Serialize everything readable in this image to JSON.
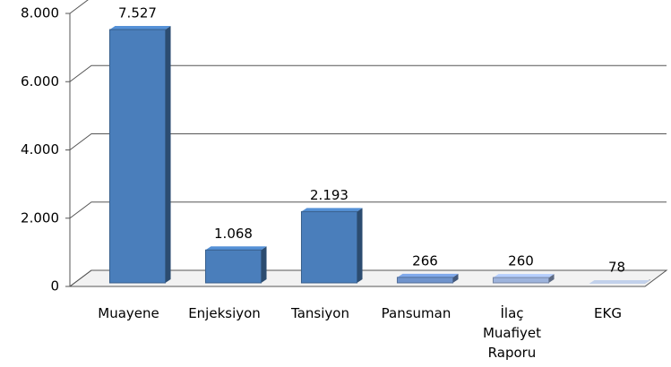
{
  "chart_data": {
    "type": "bar3d",
    "categories": [
      "Muayene",
      "Enjeksiyon",
      "Tansiyon",
      "Pansuman",
      "İlaç Muafiyet Raporu",
      "EKG"
    ],
    "values": [
      7527,
      1068,
      2193,
      266,
      260,
      78
    ],
    "value_labels": [
      "7.527",
      "1.068",
      "2.193",
      "266",
      "260",
      "78"
    ],
    "colors": [
      "#4a7ebb",
      "#4a7ebb",
      "#4a7ebb",
      "#6f93cc",
      "#9db3dc",
      "#a9b6cc"
    ],
    "ylim": [
      0,
      8000
    ],
    "yticks": [
      0,
      {
        "value": 2000,
        "label": "2.000"
      },
      {
        "value": 4000,
        "label": "4.000"
      },
      {
        "value": 6000,
        "label": "6.000"
      },
      {
        "value": 8000,
        "label": "8.000"
      }
    ],
    "grid": true
  }
}
